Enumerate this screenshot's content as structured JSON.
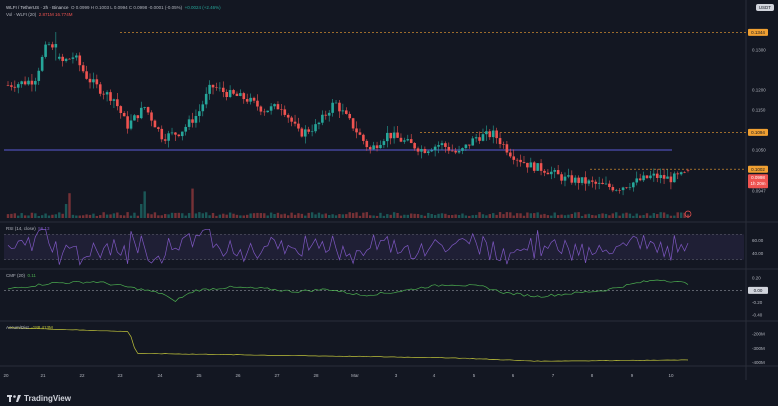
{
  "header": {
    "symbol": "WLFI / TetherUS · 2h · Binance",
    "ohlc": "O 0.0999  H 0.1003  L 0.0994  C 0.0998  -0.0001 (-0.05%)",
    "vol_label": "Vol · WLFI (20)",
    "vol_values": "2.871M  16.774M",
    "last_change": "+0.0024 (+2.46%)"
  },
  "currency_badge": "USDT",
  "indicators": {
    "rsi_label": "RSI (14, close)",
    "rsi_value": "56.13",
    "cmf_label": "CMF (20)",
    "cmf_value": "0.11",
    "ad_label": "Accum/Dist",
    "ad_value": "-188.413M"
  },
  "logo_text": "TradingView",
  "colors": {
    "background": "#131722",
    "up": "#26a69a",
    "down": "#ef5350",
    "level_line": "#f0a032",
    "support_line": "#5b5bd6",
    "rsi": "#7e57c2",
    "cmf": "#4caf50",
    "ad": "#c0c33a"
  },
  "price_axis": {
    "tick_labels": [
      "0.1300",
      "0.1200",
      "0.1150",
      "0.1050",
      "0.0957",
      "0.0947"
    ],
    "level_labels": [
      "0.1344",
      "0.1094",
      "0.1002",
      "0.0998"
    ],
    "countdown": "1h 20m"
  },
  "rsi_axis": [
    "60.00",
    "40.00"
  ],
  "cmf_axis": [
    "0.20",
    "0.00",
    "-0.20",
    "-0.40"
  ],
  "ad_axis": [
    "-200M",
    "-300M",
    "-400M"
  ],
  "time_axis": [
    "20",
    "21",
    "22",
    "23",
    "24",
    "25",
    "26",
    "27",
    "28",
    "Mar",
    "3",
    "4",
    "5",
    "6",
    "7",
    "8",
    "9",
    "10"
  ],
  "chart_data": [
    {
      "type": "candlestick",
      "title": "WLFI / TetherUS · 2h · Binance",
      "ylim": [
        0.0925,
        0.137
      ],
      "levels": {
        "resistance": [
          0.1344,
          0.1094,
          0.1002
        ],
        "support": 0.105
      },
      "ohlc_first_index": 0,
      "points_count": 200
    },
    {
      "type": "line",
      "name": "RSI (14, close)",
      "ylim": [
        20,
        80
      ],
      "bands": [
        70,
        30
      ],
      "last": 56.13
    },
    {
      "type": "line",
      "name": "CMF (20)",
      "ylim": [
        -0.45,
        0.25
      ],
      "last": 0.11
    },
    {
      "type": "line",
      "name": "Accum/Dist",
      "ylim": [
        -410,
        -150
      ],
      "unit": "M",
      "last": -188.413
    }
  ]
}
